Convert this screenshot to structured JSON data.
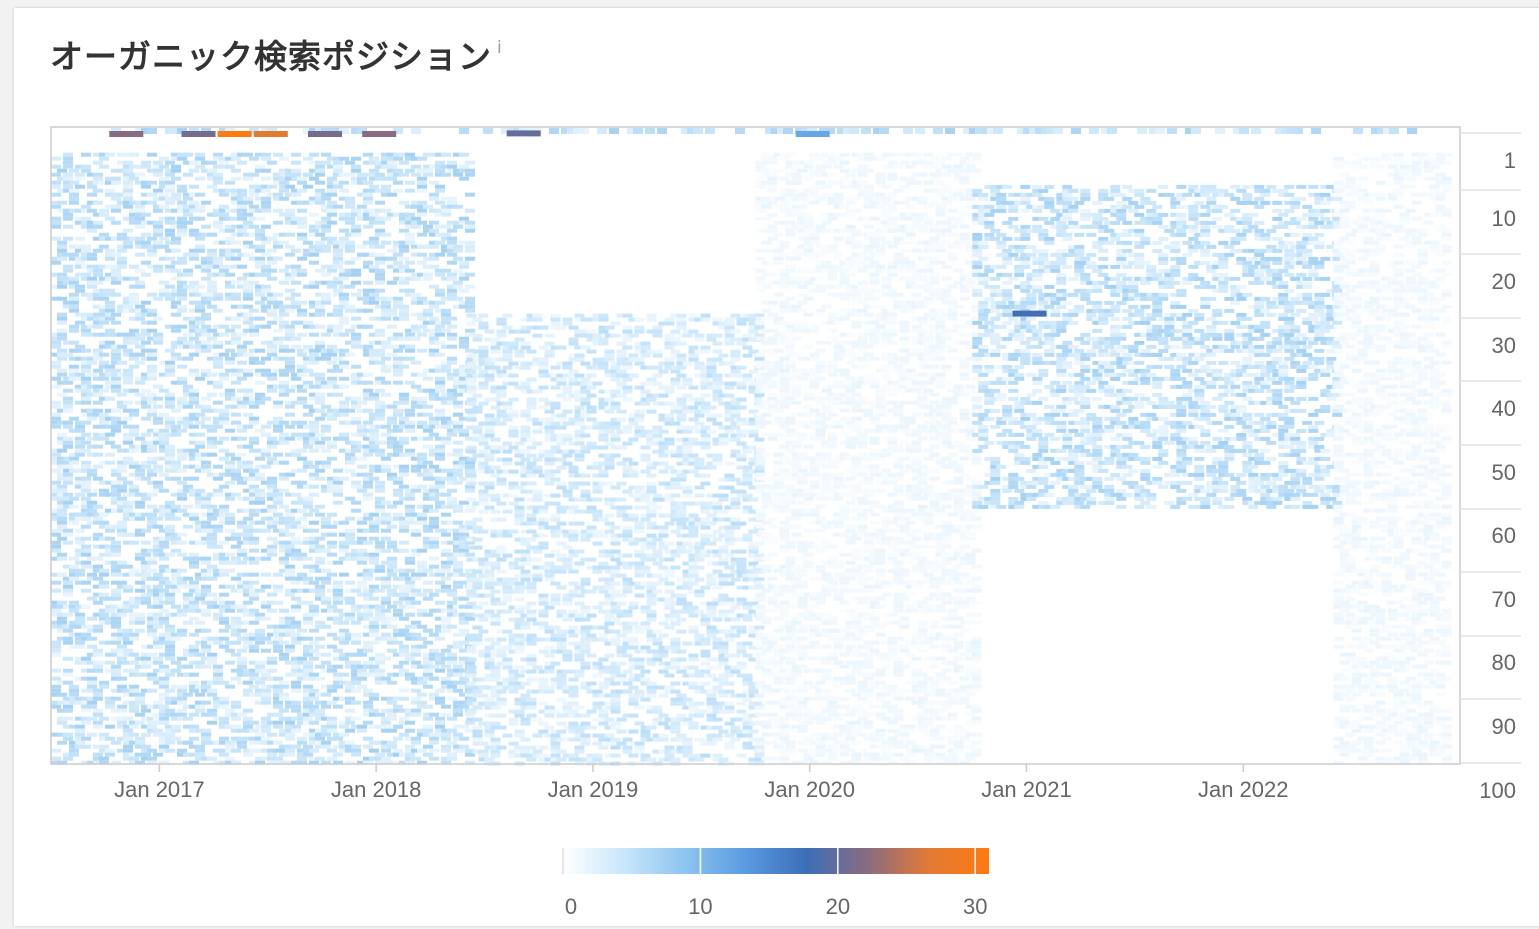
{
  "title": "オーガニック検索ポジション",
  "info_icon": "info-icon",
  "chart_data": {
    "type": "heatmap",
    "title": "オーガニック検索ポジション",
    "xlabel": "",
    "ylabel": "",
    "x_ticks": [
      "Jan 2017",
      "Jan 2018",
      "Jan 2019",
      "Jan 2020",
      "Jan 2021",
      "Jan 2022"
    ],
    "x_range": [
      "2016-07",
      "2022-12"
    ],
    "y_ticks": [
      1,
      10,
      20,
      30,
      40,
      50,
      60,
      70,
      80,
      90,
      100
    ],
    "y_range": [
      1,
      100
    ],
    "y_reversed": true,
    "colorscale": {
      "ticks": [
        0,
        10,
        20,
        30
      ],
      "range": [
        0,
        31
      ],
      "colors": [
        "#ffffff",
        "#c9e6fa",
        "#8ec4f0",
        "#5a9ae0",
        "#3c6eb8",
        "#8a6c80",
        "#e07a36",
        "#ff7a10"
      ]
    },
    "grid": false,
    "legend": "bottom",
    "highlights": [
      {
        "x": "2016-11",
        "y": 1,
        "value": 22
      },
      {
        "x": "2017-03",
        "y": 1,
        "value": 21
      },
      {
        "x": "2017-05",
        "y": 1,
        "value": 31
      },
      {
        "x": "2017-07",
        "y": 1,
        "value": 27
      },
      {
        "x": "2017-10",
        "y": 1,
        "value": 21
      },
      {
        "x": "2018-01",
        "y": 1,
        "value": 22
      },
      {
        "x": "2018-09",
        "y": 2,
        "value": 20
      },
      {
        "x": "2020-01",
        "y": 1,
        "value": 12
      },
      {
        "x": "2021-01",
        "y": 30,
        "value": 18
      }
    ],
    "density_regions": [
      {
        "x_from": "2016-07",
        "x_to": "2018-06",
        "y_from": 5,
        "y_to": 100,
        "mean_value": 4
      },
      {
        "x_from": "2018-06",
        "x_to": "2019-10",
        "y_from": 30,
        "y_to": 100,
        "mean_value": 3
      },
      {
        "x_from": "2019-10",
        "x_to": "2020-10",
        "y_from": 5,
        "y_to": 100,
        "mean_value": 1
      },
      {
        "x_from": "2020-10",
        "x_to": "2022-06",
        "y_from": 10,
        "y_to": 60,
        "mean_value": 4
      },
      {
        "x_from": "2022-06",
        "x_to": "2022-12",
        "y_from": 5,
        "y_to": 100,
        "mean_value": 1
      }
    ]
  }
}
